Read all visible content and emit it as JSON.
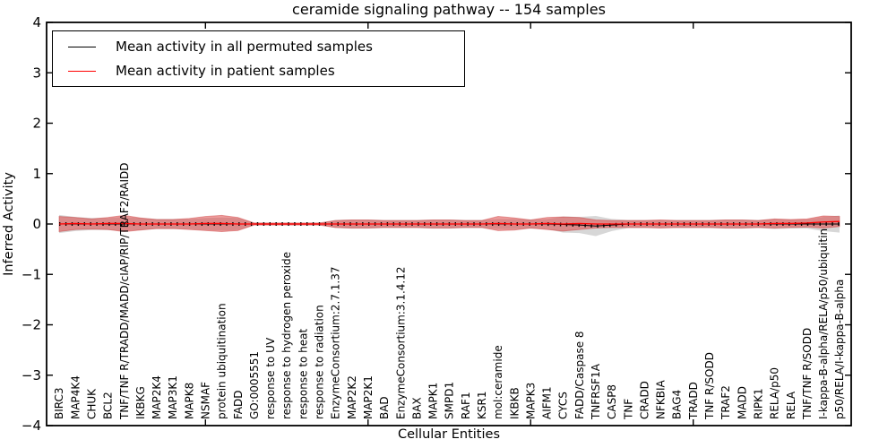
{
  "window": {
    "title": "ceramide signaling pathway -- 154 samples"
  },
  "chart_data": {
    "type": "line",
    "title": "ceramide signaling pathway -- 154 samples",
    "xlabel": "Cellular Entities",
    "ylabel": "Inferred Activity",
    "ylim": [
      -4,
      4
    ],
    "ytick_values": [
      4,
      3,
      2,
      1,
      0,
      -1,
      -2,
      -3,
      -4
    ],
    "ytick_labels": [
      "4",
      "3",
      "2",
      "1",
      "0",
      "−1",
      "−2",
      "−3",
      "−4"
    ],
    "xtick_major_entities": [
      10,
      20,
      30,
      40
    ],
    "grid": false,
    "legend": {
      "position": "upper left",
      "entries": [
        {
          "label": "Mean activity in all permuted samples",
          "color": "#000000"
        },
        {
          "label": "Mean activity in patient samples",
          "color": "#ff0000"
        }
      ]
    },
    "colors": {
      "permuted_line": "#000000",
      "patient_line": "#ff0000",
      "permuted_band": "#8c8c8c",
      "patient_band": "#e03c3c",
      "patient_band_edge": "#c83232",
      "frame": "#000000"
    },
    "entities": [
      "BIRC3",
      "MAP4K4",
      "CHUK",
      "BCL2",
      "TNF/TNF R/TRADD/MADD/cIAP/RIP/TRAF2/RAIDD",
      "IKBKG",
      "MAP2K4",
      "MAP3K1",
      "MAPK8",
      "NSMAF",
      "protein ubiquitination",
      "FADD",
      "GO:0005551",
      "response to UV",
      "response to hydrogen peroxide",
      "response to heat",
      "response to radiation",
      "EnzymeConsortium:2.7.1.37",
      "MAP2K2",
      "MAP2K1",
      "BAD",
      "EnzymeConsortium:3.1.4.12",
      "BAX",
      "MAPK1",
      "SMPD1",
      "RAF1",
      "KSR1",
      "mol:ceramide",
      "IKBKB",
      "MAPK3",
      "AIFM1",
      "CYCS",
      "FADD/Caspase 8",
      "TNFRSF1A",
      "CASP8",
      "TNF",
      "CRADD",
      "NFKBIA",
      "BAG4",
      "TRADD",
      "TNF R/SODD",
      "TRAF2",
      "MADD",
      "RIPK1",
      "RELA/p50",
      "RELA",
      "TNF/TNF R/SODD",
      "I-kappa-B-alpha/RELA/p50/ubiquitin",
      "p50/RELA/I-kappa-B-alpha"
    ],
    "series": [
      {
        "name": "Mean activity in all permuted samples",
        "values": [
          0,
          0,
          0,
          0,
          0,
          0,
          0,
          0,
          0,
          0,
          0,
          0,
          0,
          0,
          0,
          0,
          0,
          0,
          0,
          0,
          0,
          0,
          0,
          0,
          0,
          0,
          0,
          0,
          0,
          0,
          0,
          -0.01,
          -0.02,
          -0.04,
          -0.02,
          0,
          0,
          0,
          0,
          0,
          0,
          0,
          0,
          0,
          0,
          0,
          0,
          0,
          0
        ],
        "band_half_width": [
          0.18,
          0.14,
          0.12,
          0.12,
          0.14,
          0.12,
          0.1,
          0.1,
          0.1,
          0.12,
          0.13,
          0.12,
          0.02,
          0.02,
          0.02,
          0.02,
          0.02,
          0.08,
          0.09,
          0.09,
          0.08,
          0.08,
          0.08,
          0.09,
          0.09,
          0.08,
          0.08,
          0.1,
          0.1,
          0.09,
          0.1,
          0.16,
          0.16,
          0.2,
          0.12,
          0.08,
          0.08,
          0.08,
          0.08,
          0.08,
          0.08,
          0.09,
          0.09,
          0.08,
          0.1,
          0.09,
          0.09,
          0.14,
          0.17
        ]
      },
      {
        "name": "Mean activity in patient samples",
        "values": [
          0,
          0.01,
          0,
          0.01,
          0.01,
          0,
          0,
          0,
          0,
          0.01,
          0.01,
          0,
          0,
          0,
          0,
          0,
          0,
          0,
          0,
          0,
          0,
          0,
          0,
          0,
          0,
          0,
          0,
          0.01,
          0,
          0,
          0.01,
          0,
          0.01,
          0,
          0,
          0,
          0,
          0,
          0,
          0,
          0,
          0,
          0,
          0,
          0.01,
          0.01,
          0.02,
          0.04,
          0.05
        ],
        "band_half_width": [
          0.15,
          0.12,
          0.1,
          0.12,
          0.16,
          0.12,
          0.09,
          0.09,
          0.11,
          0.14,
          0.16,
          0.13,
          0.02,
          0.02,
          0.02,
          0.02,
          0.02,
          0.07,
          0.08,
          0.08,
          0.07,
          0.07,
          0.07,
          0.08,
          0.08,
          0.07,
          0.07,
          0.14,
          0.12,
          0.08,
          0.12,
          0.14,
          0.12,
          0.08,
          0.07,
          0.07,
          0.07,
          0.08,
          0.07,
          0.07,
          0.07,
          0.08,
          0.08,
          0.07,
          0.09,
          0.08,
          0.08,
          0.12,
          0.1
        ]
      }
    ]
  }
}
